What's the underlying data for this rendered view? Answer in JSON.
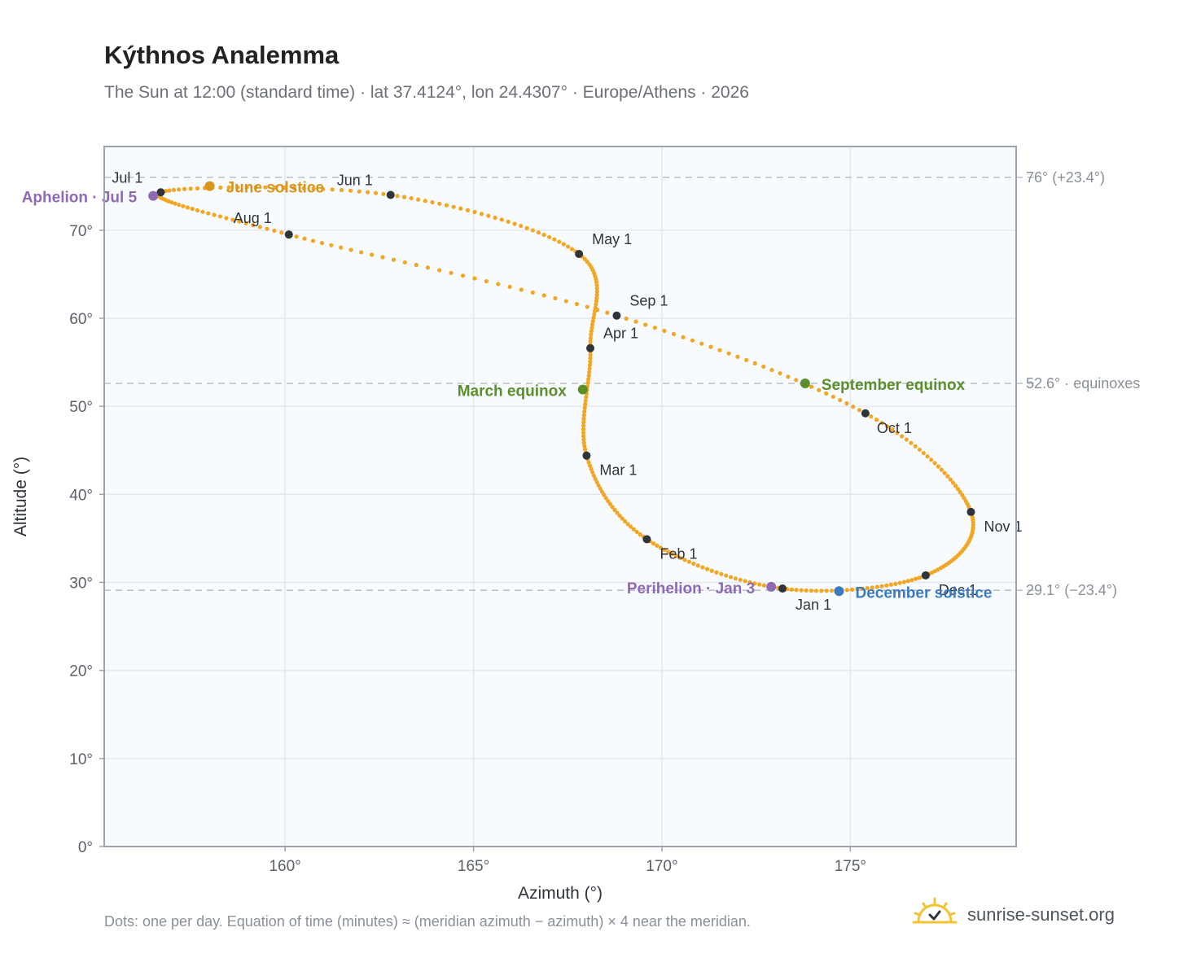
{
  "header": {
    "title": "Kýthnos Analemma",
    "subtitle": "The Sun at 12:00 (standard time) · lat 37.4124°, lon 24.4307° · Europe/Athens · 2026"
  },
  "footer": {
    "note": "Dots: one per day. Equation of time (minutes) ≈ (meridian azimuth − azimuth) × 4 near the meridian.",
    "brand": "sunrise-sunset.org",
    "brand_icon": "sun-check-icon"
  },
  "colors": {
    "curve": "#f2a623",
    "month_dot": "#2f343b",
    "solstice_june": "#d8941b",
    "equinox": "#5a8f2c",
    "solstice_december": "#3a7bbf",
    "apsis": "#9069b5",
    "guide": "#b9bec6",
    "plot_bg": "#f8fbfe",
    "grid": "#e4e8ee",
    "frame": "#9ba3ae"
  },
  "chart_data": {
    "type": "scatter",
    "xlabel": "Azimuth (°)",
    "ylabel": "Altitude (°)",
    "xlim": [
      155.2,
      179.4
    ],
    "ylim": [
      0,
      79.5
    ],
    "x_ticks": [
      160,
      165,
      170,
      175
    ],
    "x_tick_labels": [
      "160°",
      "165°",
      "170°",
      "175°"
    ],
    "y_ticks": [
      0,
      10,
      20,
      30,
      40,
      50,
      60,
      70
    ],
    "y_tick_labels": [
      "0°",
      "10°",
      "20°",
      "30°",
      "40°",
      "50°",
      "60°",
      "70°"
    ],
    "grid": true,
    "reference_lines": [
      {
        "y": 76.0,
        "label": "76° (+23.4°)"
      },
      {
        "y": 52.6,
        "label": "52.6° · equinoxes"
      },
      {
        "y": 29.1,
        "label": "29.1° (−23.4°)"
      }
    ],
    "month_markers": [
      {
        "label": "Jan 1",
        "x": 173.2,
        "y": 29.3
      },
      {
        "label": "Feb 1",
        "x": 169.6,
        "y": 34.9
      },
      {
        "label": "Mar 1",
        "x": 168.0,
        "y": 44.4
      },
      {
        "label": "Apr 1",
        "x": 168.1,
        "y": 56.6
      },
      {
        "label": "May 1",
        "x": 167.8,
        "y": 67.3
      },
      {
        "label": "Jun 1",
        "x": 162.8,
        "y": 74.0
      },
      {
        "label": "Jul 1",
        "x": 156.7,
        "y": 74.3
      },
      {
        "label": "Aug 1",
        "x": 160.1,
        "y": 69.5
      },
      {
        "label": "Sep 1",
        "x": 168.8,
        "y": 60.3
      },
      {
        "label": "Oct 1",
        "x": 175.4,
        "y": 49.2
      },
      {
        "label": "Nov 1",
        "x": 178.2,
        "y": 38.0
      },
      {
        "label": "Dec 1",
        "x": 177.0,
        "y": 30.8
      }
    ],
    "events": [
      {
        "label": "Aphelion · Jul 5",
        "x": 156.5,
        "y": 73.9,
        "kind": "apsis"
      },
      {
        "label": "June solstice",
        "x": 158.0,
        "y": 75.0,
        "kind": "solstice_june"
      },
      {
        "label": "March equinox",
        "x": 167.9,
        "y": 51.9,
        "kind": "equinox"
      },
      {
        "label": "September equinox",
        "x": 173.8,
        "y": 52.6,
        "kind": "equinox"
      },
      {
        "label": "Perihelion · Jan 3",
        "x": 172.9,
        "y": 29.5,
        "kind": "apsis"
      },
      {
        "label": "December solstice",
        "x": 174.7,
        "y": 29.0,
        "kind": "solstice_december"
      }
    ]
  }
}
